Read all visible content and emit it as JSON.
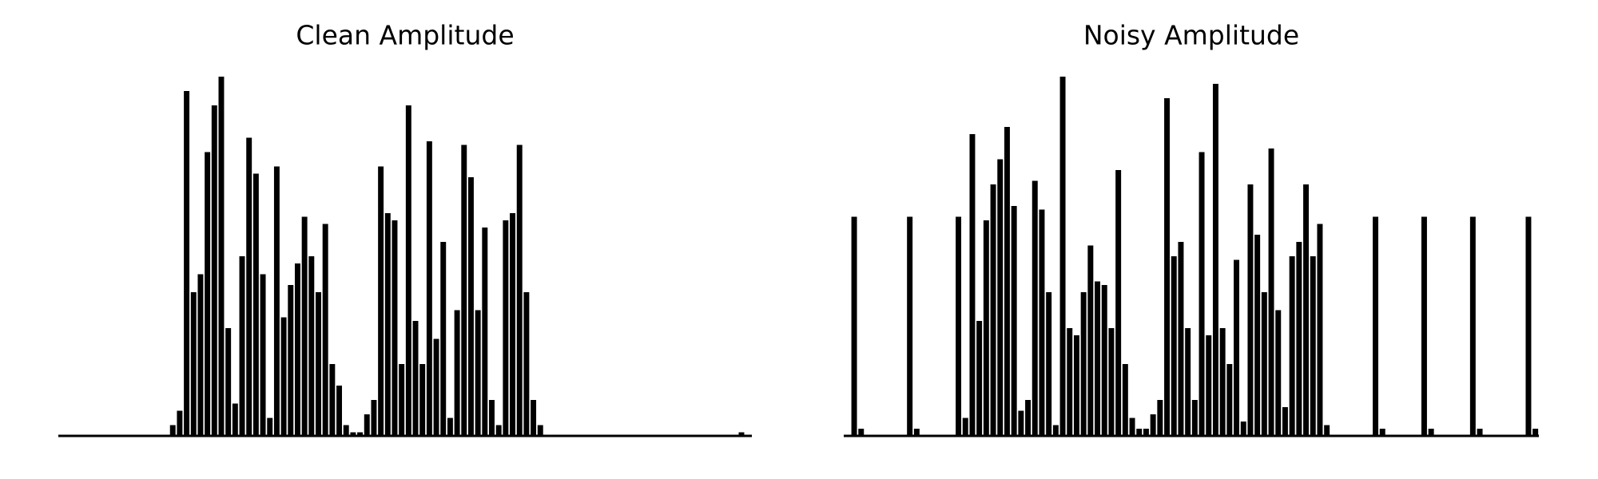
{
  "chart_data": [
    {
      "type": "bar",
      "title": "Clean Amplitude",
      "color": "#000000",
      "ylim": [
        0,
        1
      ],
      "values": [
        0,
        0,
        0,
        0,
        0,
        0,
        0,
        0,
        0,
        0,
        0,
        0,
        0,
        0,
        0,
        0,
        0.03,
        0.07,
        0.96,
        0.4,
        0.45,
        0.79,
        0.92,
        1.0,
        0.3,
        0.09,
        0.5,
        0.83,
        0.73,
        0.45,
        0.05,
        0.75,
        0.33,
        0.42,
        0.48,
        0.61,
        0.5,
        0.4,
        0.59,
        0.2,
        0.14,
        0.03,
        0.01,
        0.01,
        0.06,
        0.1,
        0.75,
        0.62,
        0.6,
        0.2,
        0.92,
        0.32,
        0.2,
        0.82,
        0.27,
        0.54,
        0.05,
        0.35,
        0.81,
        0.72,
        0.35,
        0.58,
        0.1,
        0.03,
        0.6,
        0.62,
        0.81,
        0.4,
        0.1,
        0.03,
        0,
        0,
        0,
        0,
        0,
        0,
        0,
        0,
        0,
        0,
        0,
        0,
        0,
        0,
        0,
        0,
        0,
        0,
        0,
        0,
        0,
        0,
        0,
        0,
        0,
        0,
        0,
        0,
        0.01,
        0
      ]
    },
    {
      "type": "bar",
      "title": "Noisy Amplitude",
      "color": "#000000",
      "ylim": [
        0,
        1
      ],
      "values": [
        0,
        0.61,
        0.02,
        0,
        0,
        0,
        0,
        0,
        0,
        0.61,
        0.02,
        0,
        0,
        0,
        0,
        0,
        0.61,
        0.05,
        0.84,
        0.32,
        0.6,
        0.7,
        0.77,
        0.86,
        0.64,
        0.07,
        0.1,
        0.71,
        0.63,
        0.4,
        0.03,
        1.0,
        0.3,
        0.28,
        0.4,
        0.53,
        0.43,
        0.42,
        0.3,
        0.74,
        0.2,
        0.05,
        0.02,
        0.02,
        0.06,
        0.1,
        0.94,
        0.5,
        0.54,
        0.3,
        0.1,
        0.79,
        0.28,
        0.98,
        0.3,
        0.2,
        0.49,
        0.04,
        0.7,
        0.56,
        0.4,
        0.8,
        0.35,
        0.08,
        0.5,
        0.54,
        0.7,
        0.5,
        0.59,
        0.03,
        0,
        0,
        0,
        0,
        0,
        0,
        0.61,
        0.02,
        0,
        0,
        0,
        0,
        0,
        0.61,
        0.02,
        0,
        0,
        0,
        0,
        0,
        0.61,
        0.02,
        0,
        0,
        0,
        0,
        0,
        0,
        0.61,
        0.02
      ]
    }
  ]
}
